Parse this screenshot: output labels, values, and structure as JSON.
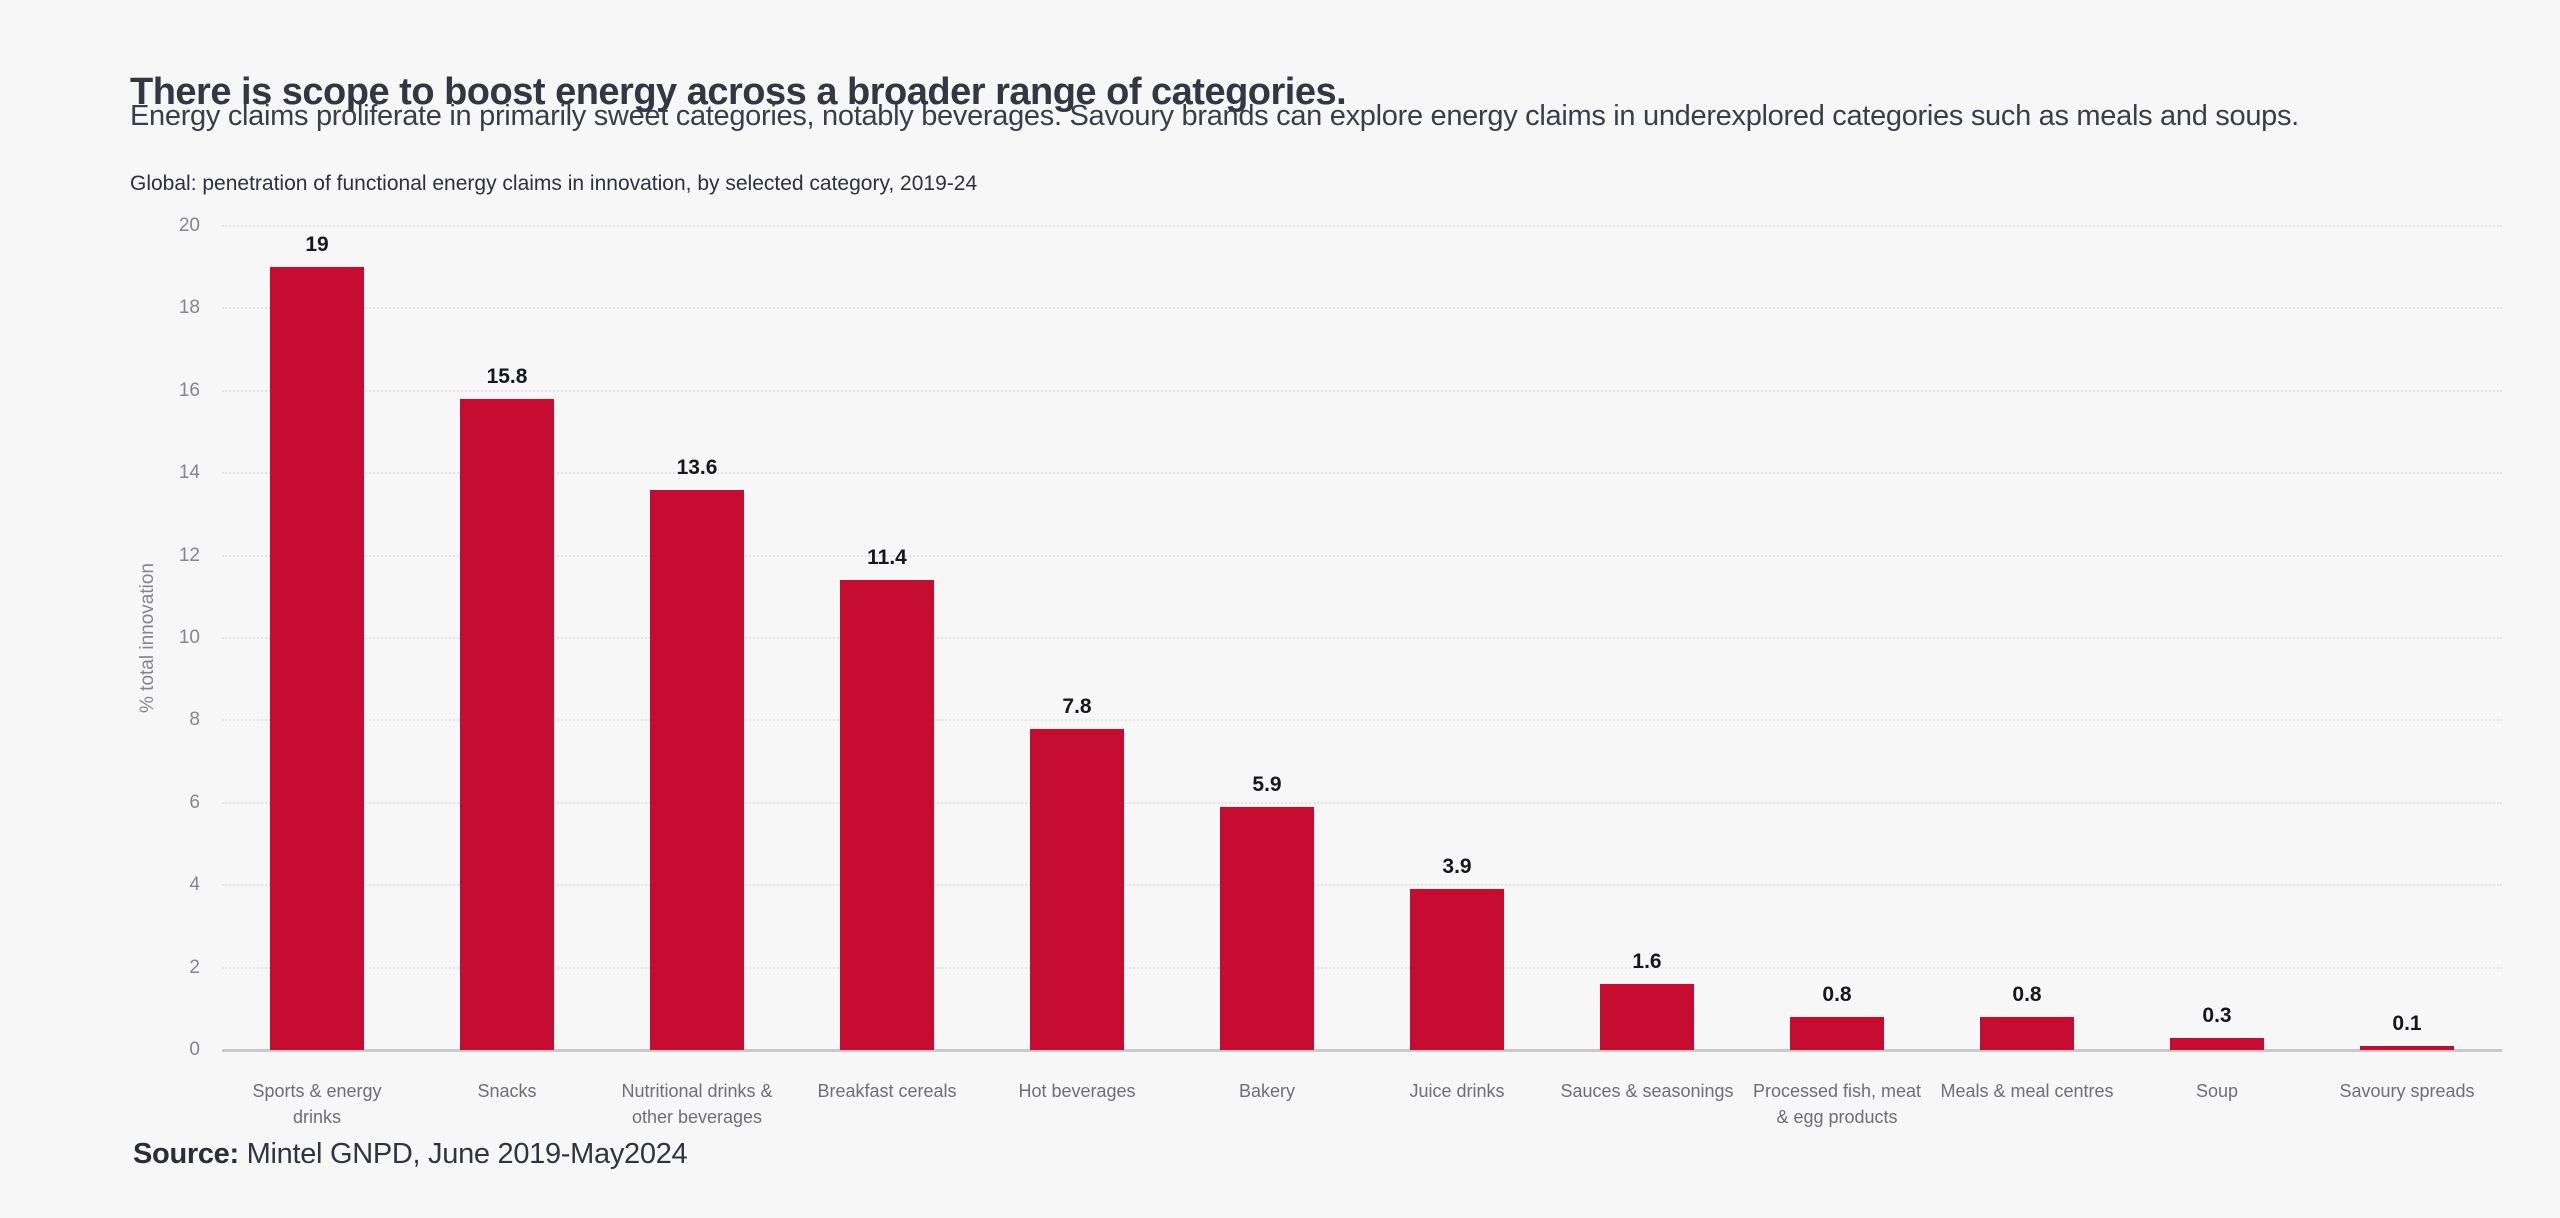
{
  "page": {
    "background_color": "#f7f7f8",
    "title": "There is scope to boost energy across a broader range of categories.",
    "subtitle": "Energy claims proliferate in primarily sweet categories, notably beverages. Savoury brands can explore energy claims in underexplored categories such as meals and soups.",
    "source_label": "Source:",
    "source_text": " Mintel GNPD, June 2019-May2024"
  },
  "chart_data": {
    "type": "bar",
    "title": "Global: penetration of functional energy claims in innovation, by selected category, 2019-24",
    "xlabel": "",
    "ylabel": "% total innovation",
    "ylim": [
      0,
      20
    ],
    "yticks": [
      0,
      2,
      4,
      6,
      8,
      10,
      12,
      14,
      16,
      18,
      20
    ],
    "grid": true,
    "legend": "none",
    "bar_color": "#c60c30",
    "categories": [
      "Sports & energy drinks",
      "Snacks",
      "Nutritional drinks & other beverages",
      "Breakfast cereals",
      "Hot beverages",
      "Bakery",
      "Juice drinks",
      "Sauces & seasonings",
      "Processed fish, meat & egg products",
      "Meals & meal centres",
      "Soup",
      "Savoury spreads"
    ],
    "values": [
      19,
      15.8,
      13.6,
      11.4,
      7.8,
      5.9,
      3.9,
      1.6,
      0.8,
      0.8,
      0.3,
      0.1
    ],
    "value_labels": [
      "19",
      "15.8",
      "13.6",
      "11.4",
      "7.8",
      "5.9",
      "3.9",
      "1.6",
      "0.8",
      "0.8",
      "0.3",
      "0.1"
    ]
  }
}
